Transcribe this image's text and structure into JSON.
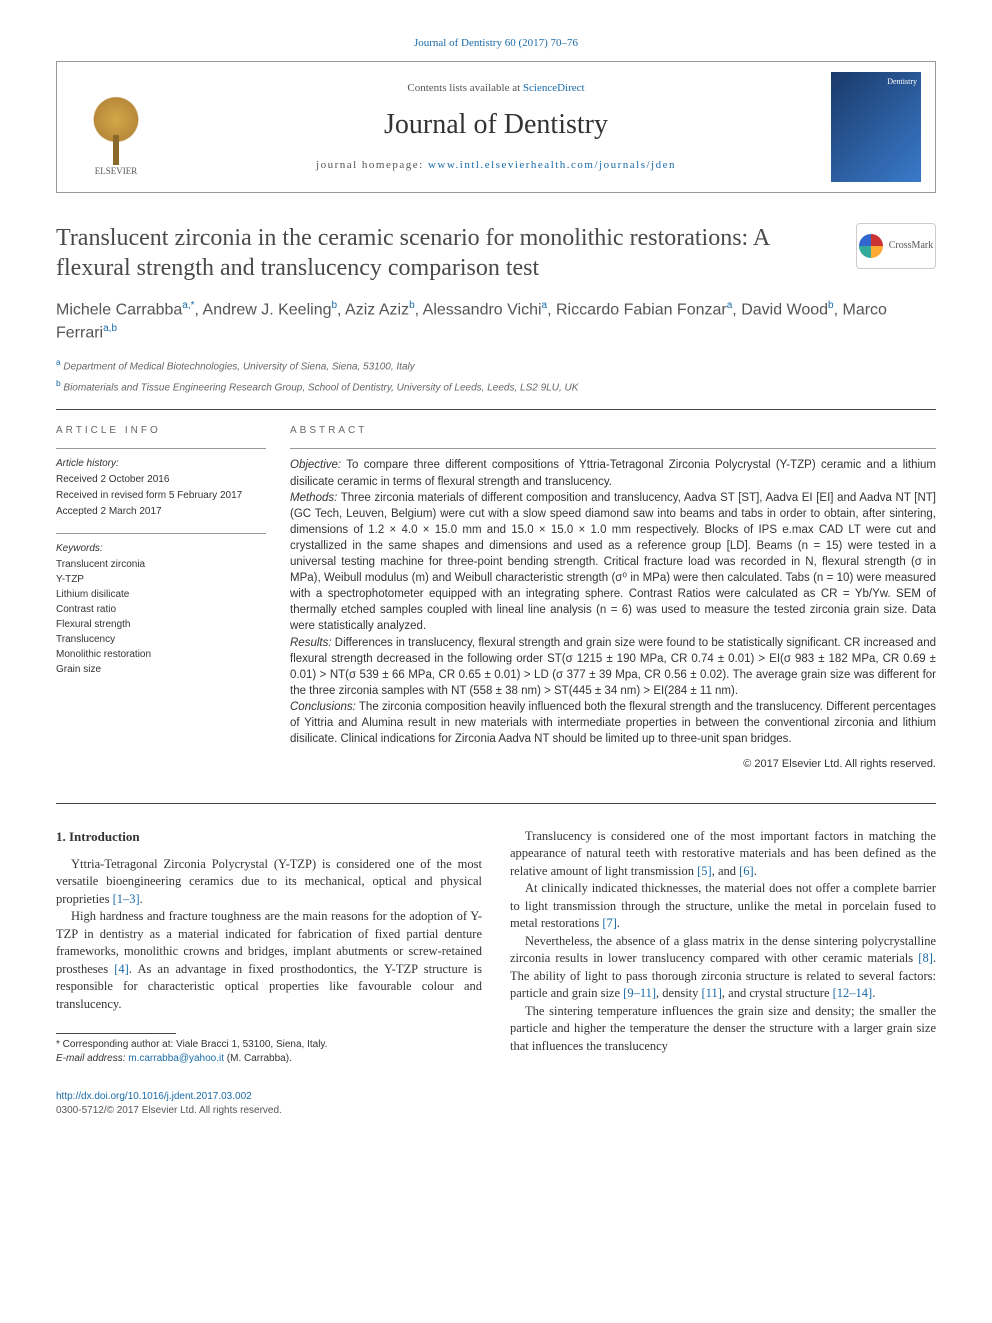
{
  "citation": "Journal of Dentistry 60 (2017) 70–76",
  "masthead": {
    "publisher": "ELSEVIER",
    "contents_prefix": "Contents lists available at ",
    "contents_link": "ScienceDirect",
    "journal": "Journal of Dentistry",
    "homepage_label": "journal homepage: ",
    "homepage_url": "www.intl.elsevierhealth.com/journals/jden",
    "cover_label": "Dentistry"
  },
  "crossmark": "CrossMark",
  "title": "Translucent zirconia in the ceramic scenario for monolithic restorations: A flexural strength and translucency comparison test",
  "authors_html": "Michele Carrabba<sup>a,*</sup>, Andrew J. Keeling<sup>b</sup>, Aziz Aziz<sup>b</sup>, Alessandro Vichi<sup>a</sup>, Riccardo Fabian Fonzar<sup>a</sup>, David Wood<sup>b</sup>, Marco Ferrari<sup>a,b</sup>",
  "affiliations": [
    {
      "sup": "a",
      "text": "Department of Medical Biotechnologies, University of Siena, Siena, 53100, Italy"
    },
    {
      "sup": "b",
      "text": "Biomaterials and Tissue Engineering Research Group, School of Dentistry, University of Leeds, Leeds, LS2 9LU, UK"
    }
  ],
  "info": {
    "heading": "ARTICLE INFO",
    "history_label": "Article history:",
    "history": [
      "Received 2 October 2016",
      "Received in revised form 5 February 2017",
      "Accepted 2 March 2017"
    ],
    "keywords_label": "Keywords:",
    "keywords": [
      "Translucent zirconia",
      "Y-TZP",
      "Lithium disilicate",
      "Contrast ratio",
      "Flexural strength",
      "Translucency",
      "Monolithic restoration",
      "Grain size"
    ]
  },
  "abstract": {
    "heading": "ABSTRACT",
    "objective_label": "Objective:",
    "objective": " To compare three different compositions of Yttria-Tetragonal Zirconia Polycrystal (Y-TZP) ceramic and a lithium disilicate ceramic in terms of flexural strength and translucency.",
    "methods_label": "Methods:",
    "methods": " Three zirconia materials of different composition and translucency, Aadva ST [ST], Aadva EI [EI] and Aadva NT [NT](GC Tech, Leuven, Belgium) were cut with a slow speed diamond saw into beams and tabs in order to obtain, after sintering, dimensions of 1.2 × 4.0 × 15.0 mm and 15.0 × 15.0 × 1.0 mm respectively. Blocks of IPS e.max CAD LT were cut and crystallized in the same shapes and dimensions and used as a reference group [LD]. Beams (n = 15) were tested in a universal testing machine for three-point bending strength. Critical fracture load was recorded in N, flexural strength (σ in MPa), Weibull modulus (m) and Weibull characteristic strength (σ⁰ in MPa) were then calculated. Tabs (n = 10) were measured with a spectrophotometer equipped with an integrating sphere. Contrast Ratios were calculated as CR = Yb/Yw. SEM of thermally etched samples coupled with lineal line analysis (n = 6) was used to measure the tested zirconia grain size. Data were statistically analyzed.",
    "results_label": "Results:",
    "results": " Differences in translucency, flexural strength and grain size were found to be statistically significant. CR increased and flexural strength decreased in the following order ST(σ 1215 ± 190 MPa, CR 0.74 ± 0.01) > EI(σ 983 ± 182 MPa, CR 0.69 ± 0.01) > NT(σ 539 ± 66 MPa, CR 0.65 ± 0.01) > LD (σ 377 ± 39 Mpa, CR 0.56 ± 0.02). The average grain size was different for the three zirconia samples with NT (558 ± 38 nm) > ST(445 ± 34 nm) > EI(284 ± 11 nm).",
    "conclusions_label": "Conclusions:",
    "conclusions": " The zirconia composition heavily influenced both the flexural strength and the translucency. Different percentages of Yittria and Alumina result in new materials with intermediate properties in between the conventional zirconia and lithium disilicate. Clinical indications for Zirconia Aadva NT should be limited up to three-unit span bridges.",
    "copyright": "© 2017 Elsevier Ltd. All rights reserved."
  },
  "intro": {
    "heading": "1. Introduction",
    "p1": "Yttria-Tetragonal Zirconia Polycrystal (Y-TZP) is considered one of the most versatile bioengineering ceramics due to its mechanical, optical and physical proprieties ",
    "ref1": "[1–3]",
    "p1b": ".",
    "p2a": "High hardness and fracture toughness are the main reasons for the adoption of Y-TZP in dentistry as a material indicated for fabrication of fixed partial denture frameworks, monolithic crowns and bridges, implant abutments or screw-retained prostheses ",
    "ref4": "[4]",
    "p2b": ". As an advantage in fixed prosthodontics, the Y-TZP structure is responsible for characteristic optical properties like favourable colour and translucency.",
    "p3a": "Translucency is considered one of the most important factors in matching the appearance of natural teeth with restorative materials and has been defined as the relative amount of light transmission ",
    "ref5": "[5]",
    "p3mid": ", and ",
    "ref6": "[6]",
    "p3b": ".",
    "p4a": "At clinically indicated thicknesses, the material does not offer a complete barrier to light transmission through the structure, unlike the metal in porcelain fused to metal restorations ",
    "ref7": "[7]",
    "p4b": ".",
    "p5a": "Nevertheless, the absence of a glass matrix in the dense sintering polycrystalline zirconia results in lower translucency compared with other ceramic materials ",
    "ref8": "[8]",
    "p5b": ". The ability of light to pass thorough zirconia structure is related to several factors: particle and grain size ",
    "ref9": "[9–11]",
    "p5c": ", density ",
    "ref11": "[11]",
    "p5d": ", and crystal structure ",
    "ref12": "[12–14]",
    "p5e": ".",
    "p6": "The sintering temperature influences the grain size and density; the smaller the particle and higher the temperature the denser the structure with a larger grain size that influences the translucency"
  },
  "footnote": {
    "corr": "* Corresponding author at: Viale Bracci 1, 53100, Siena, Italy.",
    "email_label": "E-mail address: ",
    "email": "m.carrabba@yahoo.it",
    "email_tail": " (M. Carrabba)."
  },
  "bottom": {
    "doi": "http://dx.doi.org/10.1016/j.jdent.2017.03.002",
    "issn": "0300-5712/© 2017 Elsevier Ltd. All rights reserved."
  },
  "colors": {
    "link": "#1a6ba8",
    "text": "#333333",
    "muted": "#666666"
  }
}
